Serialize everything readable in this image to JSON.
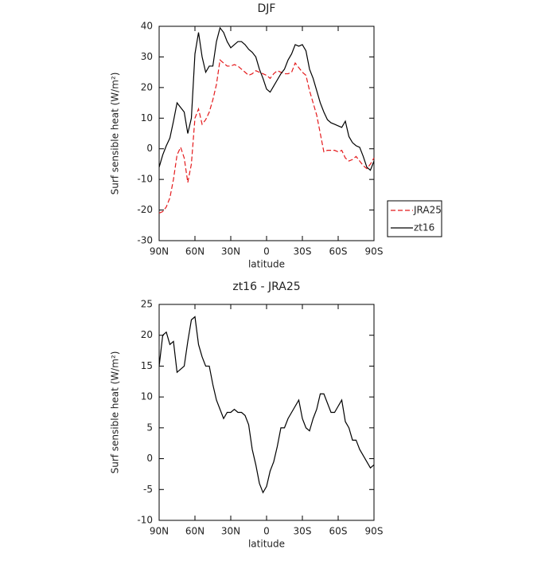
{
  "chart_data": [
    {
      "type": "line",
      "title": "DJF",
      "xlabel": "latitude",
      "ylabel": "Surf sensible heat (W/m²)",
      "x": [
        90,
        87,
        84,
        81,
        78,
        75,
        72,
        69,
        66,
        63,
        60,
        57,
        54,
        51,
        48,
        45,
        42,
        39,
        36,
        33,
        30,
        27,
        24,
        21,
        18,
        15,
        12,
        9,
        6,
        3,
        0,
        -3,
        -6,
        -9,
        -12,
        -15,
        -18,
        -21,
        -24,
        -27,
        -30,
        -33,
        -36,
        -39,
        -42,
        -45,
        -48,
        -51,
        -54,
        -57,
        -60,
        -63,
        -66,
        -69,
        -72,
        -75,
        -78,
        -81,
        -84,
        -87,
        -90
      ],
      "series": [
        {
          "name": "JRA25",
          "color": "#e41a1c",
          "dash": true,
          "values": [
            -21,
            -20.5,
            -19,
            -16,
            -10,
            -2,
            0.5,
            -3,
            -11,
            -5,
            10,
            13,
            8,
            9.5,
            12,
            16,
            21,
            29,
            28,
            27,
            27,
            27.5,
            27,
            26,
            25,
            24,
            24.5,
            25.5,
            25,
            24.5,
            24,
            23,
            24.5,
            25.5,
            25,
            24.5,
            24.5,
            25,
            28,
            26.5,
            25,
            24,
            19,
            15,
            11,
            5,
            -1,
            -0.5,
            -0.5,
            -0.5,
            -1,
            -0.5,
            -3,
            -4,
            -3.5,
            -2.5,
            -4,
            -5.5,
            -6.5,
            -5,
            -3
          ]
        },
        {
          "name": "zt16",
          "color": "#000000",
          "dash": false,
          "values": [
            -6,
            -2,
            1,
            3.5,
            9,
            15,
            13.5,
            12,
            5,
            10,
            31,
            38,
            30,
            25,
            27,
            27,
            35,
            39.5,
            38,
            35,
            33,
            34,
            35,
            35,
            34,
            32.5,
            31.5,
            30,
            26,
            23,
            19.5,
            18.5,
            20.5,
            22.5,
            24.5,
            26,
            29,
            31,
            34,
            33.5,
            34,
            32,
            26,
            23,
            19,
            15,
            12,
            9.5,
            8.5,
            8,
            7.5,
            7,
            9,
            4,
            2,
            1,
            0.5,
            -2.5,
            -6,
            -7,
            -4
          ]
        }
      ],
      "xlim": [
        90,
        -90
      ],
      "xticks": [
        {
          "value": 90,
          "label": "90N"
        },
        {
          "value": 60,
          "label": "60N"
        },
        {
          "value": 30,
          "label": "30N"
        },
        0,
        {
          "value": -30,
          "label": "30S"
        },
        {
          "value": -60,
          "label": "60S"
        },
        {
          "value": -90,
          "label": "90S"
        }
      ],
      "ylim": [
        -30,
        40
      ],
      "yticks": [
        -30,
        -20,
        -10,
        0,
        10,
        20,
        30,
        40
      ],
      "legend": "right"
    },
    {
      "type": "line",
      "title": "zt16 - JRA25",
      "xlabel": "latitude",
      "ylabel": "Surf sensible heat (W/m²)",
      "color": "#000000",
      "x": [
        90,
        87,
        84,
        81,
        78,
        75,
        72,
        69,
        66,
        63,
        60,
        57,
        54,
        51,
        48,
        45,
        42,
        39,
        36,
        33,
        30,
        27,
        24,
        21,
        18,
        15,
        12,
        9,
        6,
        3,
        0,
        -3,
        -6,
        -9,
        -12,
        -15,
        -18,
        -21,
        -24,
        -27,
        -30,
        -33,
        -36,
        -39,
        -42,
        -45,
        -48,
        -51,
        -54,
        -57,
        -60,
        -63,
        -66,
        -69,
        -72,
        -75,
        -78,
        -81,
        -84,
        -87,
        -90
      ],
      "values": [
        15,
        20,
        20.5,
        18.5,
        19,
        14,
        14.5,
        15,
        19,
        22.5,
        23,
        18.5,
        16.5,
        15,
        15,
        12,
        9.5,
        8,
        6.5,
        7.5,
        7.5,
        8,
        7.5,
        7.5,
        7,
        5.5,
        1.5,
        -1,
        -4,
        -5.5,
        -4.5,
        -2,
        -0.5,
        2,
        5,
        5,
        6.5,
        7.5,
        8.5,
        9.5,
        6.5,
        5,
        4.5,
        6.5,
        8,
        10.5,
        10.5,
        9,
        7.5,
        7.5,
        8.5,
        9.5,
        6,
        5,
        3,
        3,
        1.5,
        0.5,
        -0.5,
        -1.5,
        -1
      ],
      "xlim": [
        90,
        -90
      ],
      "xticks": [
        {
          "value": 90,
          "label": "90N"
        },
        {
          "value": 60,
          "label": "60N"
        },
        {
          "value": 30,
          "label": "30N"
        },
        0,
        {
          "value": -30,
          "label": "30S"
        },
        {
          "value": -60,
          "label": "60S"
        },
        {
          "value": -90,
          "label": "90S"
        }
      ],
      "ylim": [
        -10,
        25
      ],
      "yticks": [
        -10,
        -5,
        0,
        5,
        10,
        15,
        20,
        25
      ]
    }
  ]
}
